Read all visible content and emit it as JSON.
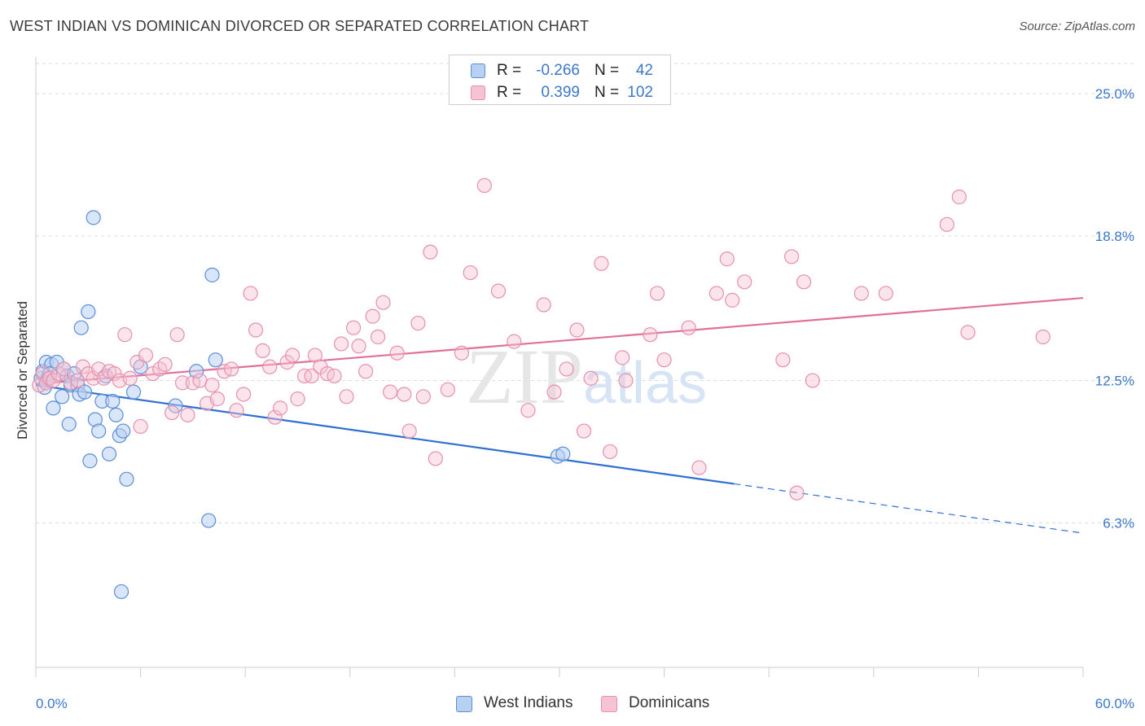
{
  "title": "WEST INDIAN VS DOMINICAN DIVORCED OR SEPARATED CORRELATION CHART",
  "source": "Source: ZipAtlas.com",
  "watermark": "ZIPatlas",
  "colors": {
    "west_indians": "#5b8fd6",
    "west_indians_fill": "#b9d0f3",
    "west_indians_line": "#2f6fd1",
    "dominicans": "#e690ad",
    "dominicans_fill": "#f6c3d3",
    "dominicans_line": "#e0709a",
    "axis_text": "#3c78c8",
    "grid": "#dddddd"
  },
  "legend": {
    "rows": [
      {
        "r_label": "R =",
        "r_value": "-0.266",
        "n_label": "N =",
        "n_value": "42"
      },
      {
        "r_label": "R =",
        "r_value": "0.399",
        "n_label": "N =",
        "n_value": "102"
      }
    ],
    "bottom": [
      "West Indians",
      "Dominicans"
    ]
  },
  "chart_data": {
    "type": "scatter",
    "title": "WEST INDIAN VS DOMINICAN DIVORCED OR SEPARATED CORRELATION CHART",
    "xlabel": "",
    "ylabel": "Divorced or Separated",
    "xlim": [
      0,
      60
    ],
    "ylim": [
      0,
      26.6
    ],
    "x_tick_labels": [
      "0.0%",
      "60.0%"
    ],
    "y_ticks": [
      6.3,
      12.5,
      18.8,
      25.0
    ],
    "y_tick_labels": [
      "6.3%",
      "12.5%",
      "18.8%",
      "25.0%"
    ],
    "grid": "horizontal dashed",
    "series": [
      {
        "name": "West Indians",
        "R": -0.266,
        "N": 42,
        "points": [
          [
            0.3,
            12.6
          ],
          [
            0.4,
            12.9
          ],
          [
            0.5,
            12.2
          ],
          [
            0.6,
            13.3
          ],
          [
            0.7,
            12.6
          ],
          [
            0.9,
            13.2
          ],
          [
            1.0,
            11.3
          ],
          [
            1.2,
            13.3
          ],
          [
            1.5,
            11.8
          ],
          [
            1.6,
            13.0
          ],
          [
            1.8,
            12.7
          ],
          [
            1.9,
            10.6
          ],
          [
            2.0,
            12.3
          ],
          [
            2.2,
            12.8
          ],
          [
            2.4,
            12.3
          ],
          [
            2.5,
            11.9
          ],
          [
            2.6,
            14.8
          ],
          [
            2.8,
            12.0
          ],
          [
            3.0,
            15.5
          ],
          [
            3.1,
            9.0
          ],
          [
            3.3,
            19.6
          ],
          [
            3.4,
            10.8
          ],
          [
            3.6,
            10.3
          ],
          [
            3.8,
            11.6
          ],
          [
            4.0,
            12.7
          ],
          [
            4.2,
            9.3
          ],
          [
            4.4,
            11.6
          ],
          [
            4.6,
            11.0
          ],
          [
            4.8,
            10.1
          ],
          [
            4.9,
            3.3
          ],
          [
            5.0,
            10.3
          ],
          [
            5.2,
            8.2
          ],
          [
            5.6,
            12.0
          ],
          [
            6.0,
            13.1
          ],
          [
            8.0,
            11.4
          ],
          [
            9.2,
            12.9
          ],
          [
            9.9,
            6.4
          ],
          [
            10.1,
            17.1
          ],
          [
            10.3,
            13.4
          ],
          [
            29.9,
            9.2
          ],
          [
            30.2,
            9.3
          ],
          [
            0.8,
            12.8
          ]
        ]
      },
      {
        "name": "Dominicans",
        "R": 0.399,
        "N": 102,
        "points": [
          [
            0.2,
            12.3
          ],
          [
            0.4,
            12.8
          ],
          [
            0.6,
            12.4
          ],
          [
            0.8,
            12.6
          ],
          [
            1.0,
            12.5
          ],
          [
            1.3,
            12.8
          ],
          [
            1.6,
            13.0
          ],
          [
            2.0,
            12.4
          ],
          [
            2.4,
            12.5
          ],
          [
            2.7,
            13.1
          ],
          [
            3.0,
            12.8
          ],
          [
            3.3,
            12.6
          ],
          [
            3.6,
            13.0
          ],
          [
            3.9,
            12.6
          ],
          [
            4.2,
            12.9
          ],
          [
            4.5,
            12.8
          ],
          [
            4.8,
            12.5
          ],
          [
            5.1,
            14.5
          ],
          [
            5.4,
            12.6
          ],
          [
            5.8,
            13.3
          ],
          [
            6.0,
            10.5
          ],
          [
            6.3,
            13.6
          ],
          [
            6.7,
            12.8
          ],
          [
            7.1,
            13.0
          ],
          [
            7.4,
            13.2
          ],
          [
            7.8,
            11.1
          ],
          [
            8.1,
            14.5
          ],
          [
            8.4,
            12.4
          ],
          [
            8.7,
            11.0
          ],
          [
            9.0,
            12.4
          ],
          [
            9.4,
            12.5
          ],
          [
            9.8,
            11.5
          ],
          [
            10.1,
            12.3
          ],
          [
            10.4,
            11.7
          ],
          [
            10.8,
            12.9
          ],
          [
            11.2,
            13.0
          ],
          [
            11.5,
            11.2
          ],
          [
            11.9,
            11.9
          ],
          [
            12.3,
            16.3
          ],
          [
            12.6,
            14.7
          ],
          [
            13.0,
            13.8
          ],
          [
            13.4,
            13.1
          ],
          [
            13.7,
            10.9
          ],
          [
            14.0,
            11.3
          ],
          [
            14.4,
            13.3
          ],
          [
            14.7,
            13.6
          ],
          [
            15.0,
            11.7
          ],
          [
            15.4,
            12.7
          ],
          [
            15.8,
            12.7
          ],
          [
            16.0,
            13.6
          ],
          [
            16.3,
            13.1
          ],
          [
            16.7,
            12.8
          ],
          [
            17.1,
            12.7
          ],
          [
            17.5,
            14.1
          ],
          [
            17.8,
            11.8
          ],
          [
            18.2,
            14.8
          ],
          [
            18.5,
            14.0
          ],
          [
            18.9,
            12.9
          ],
          [
            19.3,
            15.3
          ],
          [
            19.6,
            14.4
          ],
          [
            19.9,
            15.9
          ],
          [
            20.3,
            12.0
          ],
          [
            20.7,
            13.7
          ],
          [
            21.1,
            11.9
          ],
          [
            21.4,
            10.3
          ],
          [
            21.9,
            15.0
          ],
          [
            22.2,
            11.8
          ],
          [
            22.6,
            18.1
          ],
          [
            22.9,
            9.1
          ],
          [
            23.6,
            12.1
          ],
          [
            24.4,
            13.7
          ],
          [
            24.9,
            17.2
          ],
          [
            25.7,
            21.0
          ],
          [
            26.5,
            16.4
          ],
          [
            27.4,
            14.2
          ],
          [
            28.2,
            11.2
          ],
          [
            29.1,
            15.8
          ],
          [
            29.7,
            12.0
          ],
          [
            30.4,
            13.0
          ],
          [
            31.0,
            14.7
          ],
          [
            31.4,
            10.3
          ],
          [
            31.8,
            12.6
          ],
          [
            32.4,
            17.6
          ],
          [
            32.9,
            9.4
          ],
          [
            33.6,
            13.5
          ],
          [
            33.8,
            12.5
          ],
          [
            35.2,
            14.5
          ],
          [
            35.6,
            16.3
          ],
          [
            36.0,
            13.4
          ],
          [
            37.4,
            14.8
          ],
          [
            38.0,
            8.7
          ],
          [
            39.0,
            16.3
          ],
          [
            39.6,
            17.8
          ],
          [
            39.9,
            16.0
          ],
          [
            40.6,
            16.8
          ],
          [
            42.8,
            13.4
          ],
          [
            43.3,
            17.9
          ],
          [
            44.0,
            16.8
          ],
          [
            44.5,
            12.5
          ],
          [
            47.3,
            16.3
          ],
          [
            48.7,
            16.3
          ],
          [
            52.2,
            19.3
          ]
        ]
      }
    ],
    "extra_points_dominicans": [
      [
        43.6,
        7.6
      ],
      [
        52.9,
        20.5
      ],
      [
        53.4,
        14.6
      ],
      [
        57.7,
        14.4
      ]
    ],
    "trend_lines": [
      {
        "series": "West Indians",
        "x": [
          0,
          40
        ],
        "y": [
          12.3,
          8.0
        ],
        "dashed_extension_to_x": 60,
        "dashed_end_y": 5.85
      },
      {
        "series": "Dominicans",
        "x": [
          0,
          60
        ],
        "y": [
          12.35,
          16.1
        ]
      }
    ]
  }
}
